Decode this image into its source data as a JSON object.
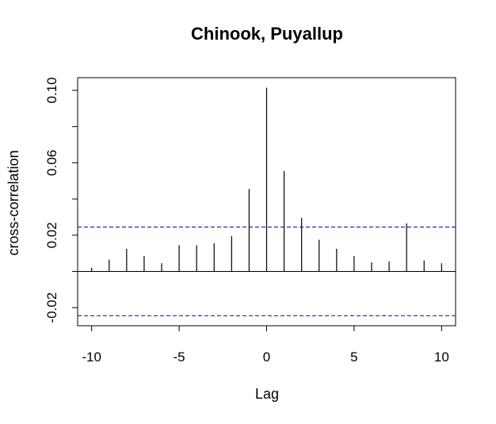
{
  "chart_data": {
    "type": "bar",
    "title": "Chinook, Puyallup",
    "xlabel": "Lag",
    "ylabel": "cross-correlation",
    "xlim": [
      -10.8,
      10.8
    ],
    "ylim": [
      -0.03,
      0.107
    ],
    "xticks": [
      -10,
      -5,
      0,
      5,
      10
    ],
    "xtick_labels": [
      "-10",
      "-5",
      "0",
      "5",
      "10"
    ],
    "yticks": [
      -0.02,
      0.0,
      0.02,
      0.04,
      0.06,
      0.08,
      0.1
    ],
    "ytick_labels": [
      "-0.02",
      "",
      "0.02",
      "",
      "0.06",
      "",
      "0.10"
    ],
    "x": [
      -10,
      -9,
      -8,
      -7,
      -6,
      -5,
      -4,
      -3,
      -2,
      -1,
      0,
      1,
      2,
      3,
      4,
      5,
      6,
      7,
      8,
      9,
      10
    ],
    "values": [
      0.002,
      0.0065,
      0.0125,
      0.0085,
      0.0045,
      0.0145,
      0.0145,
      0.0155,
      0.0195,
      0.0455,
      0.1015,
      0.0555,
      0.0295,
      0.0175,
      0.0125,
      0.0085,
      0.005,
      0.0055,
      0.0265,
      0.006,
      0.0045
    ],
    "confidence_bounds": [
      0.0245,
      -0.0245
    ],
    "colors": {
      "bars": "#000000",
      "bounds": "#2323d3",
      "zero_line": "#000000"
    },
    "grid": false,
    "legend": "none"
  }
}
